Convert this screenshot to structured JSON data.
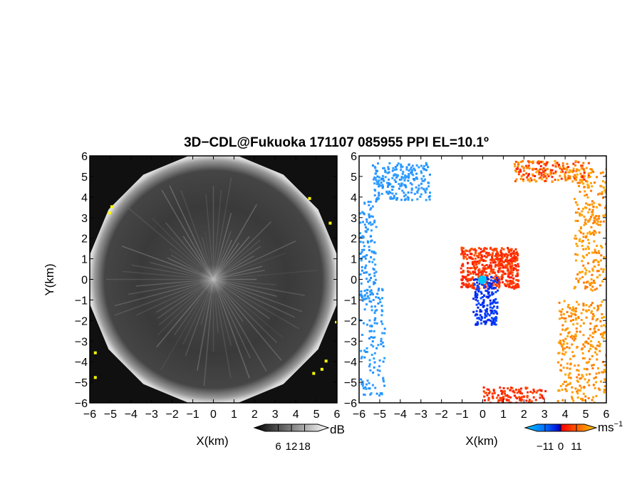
{
  "title": "3D−CDL@Fukuoka 171107 085955 PPI EL=10.1º",
  "chart_data": [
    {
      "type": "heatmap",
      "name": "reflectivity-ppi",
      "xlabel": "X(km)",
      "ylabel": "Y(km)",
      "xlim": [
        -6,
        6
      ],
      "ylim": [
        -6,
        6
      ],
      "x_ticks": [
        "−6",
        "−5",
        "−4",
        "−3",
        "−2",
        "−1",
        "0",
        "1",
        "2",
        "3",
        "4",
        "5",
        "6"
      ],
      "y_ticks": [
        "6",
        "5",
        "4",
        "3",
        "2",
        "1",
        "0",
        "−1",
        "−2",
        "−3",
        "−4",
        "−5",
        "−6"
      ],
      "scan_radius_km": 6,
      "description_colors": {
        "background": "#000000",
        "speckle": "#9a9a9a",
        "rim": "#e0e0e0",
        "hot": "#ffff00"
      },
      "colorbar": {
        "unit": "dB",
        "ticks": [
          "6",
          "12",
          "18"
        ],
        "range": [
          0,
          24
        ],
        "gradient": [
          "#000000",
          "#ffffff"
        ]
      }
    },
    {
      "type": "heatmap",
      "name": "doppler-velocity-ppi",
      "xlabel": "X(km)",
      "xlim": [
        -6,
        6
      ],
      "ylim": [
        -6,
        6
      ],
      "x_ticks": [
        "−6",
        "−5",
        "−4",
        "−3",
        "−2",
        "−1",
        "0",
        "1",
        "2",
        "3",
        "4",
        "5",
        "6"
      ],
      "y_ticks": [
        "6",
        "5",
        "4",
        "3",
        "2",
        "1",
        "0",
        "−1",
        "−2",
        "−3",
        "−4",
        "−5",
        "−6"
      ],
      "colorbar": {
        "unit": "ms",
        "unit_exponent": "−1",
        "ticks": [
          "−11",
          "0",
          "11"
        ],
        "range": [
          -16.5,
          16.5
        ],
        "gradient": [
          "#00c8ff",
          "#0066ff",
          "#0000c8",
          "#ff0000",
          "#ff6600",
          "#ffcc00"
        ]
      }
    }
  ]
}
